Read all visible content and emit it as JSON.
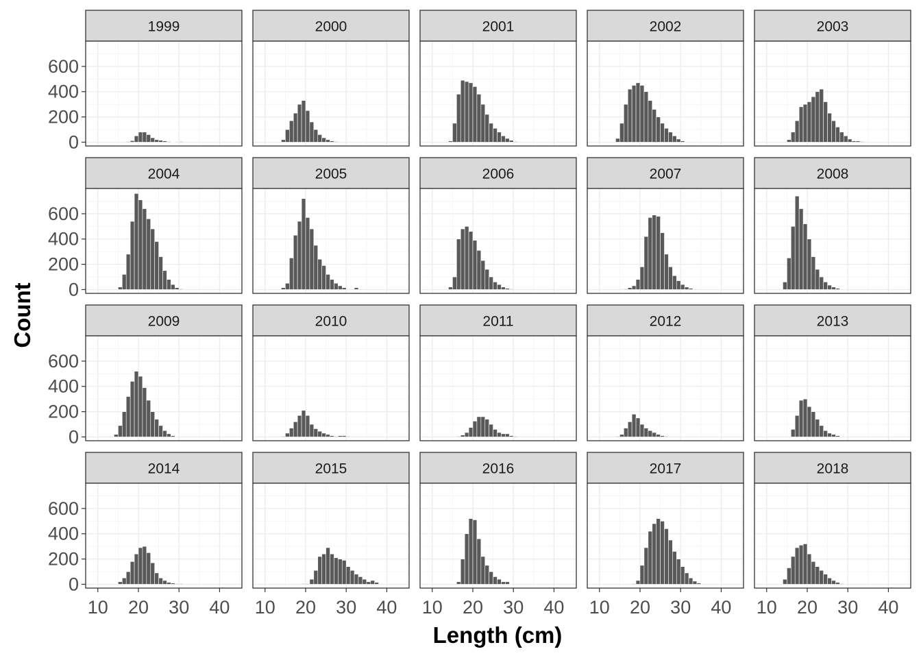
{
  "chart_data": {
    "type": "bar",
    "subtype": "faceted-histogram",
    "xlabel": "Length (cm)",
    "ylabel": "Count",
    "xlim": [
      7,
      45.5
    ],
    "ylim": [
      -30,
      800
    ],
    "xticks": [
      10,
      20,
      30,
      40
    ],
    "yticks": [
      0,
      200,
      400,
      600
    ],
    "grid": true,
    "legend": "none",
    "bar_color": "#595959",
    "facet_layout": {
      "rows": 4,
      "cols": 5
    },
    "bin_start": 14,
    "bin_width": 1,
    "facets": [
      {
        "label": "1999",
        "values": [
          0,
          0,
          0,
          5,
          12,
          50,
          80,
          80,
          60,
          35,
          20,
          15,
          10,
          5,
          2,
          0,
          5
        ]
      },
      {
        "label": "2000",
        "values": [
          20,
          100,
          170,
          230,
          300,
          330,
          250,
          160,
          100,
          60,
          35,
          20,
          10,
          5
        ]
      },
      {
        "label": "2001",
        "values": [
          10,
          150,
          380,
          490,
          480,
          470,
          440,
          380,
          300,
          220,
          150,
          110,
          80,
          50,
          30,
          15,
          5
        ]
      },
      {
        "label": "2002",
        "values": [
          30,
          150,
          300,
          420,
          450,
          470,
          450,
          400,
          330,
          260,
          200,
          150,
          110,
          80,
          50,
          25,
          10
        ]
      },
      {
        "label": "2003",
        "values": [
          0,
          20,
          80,
          170,
          280,
          300,
          320,
          360,
          400,
          420,
          320,
          230,
          170,
          120,
          80,
          50,
          25,
          10,
          10,
          5
        ]
      },
      {
        "label": "2004",
        "values": [
          0,
          20,
          120,
          280,
          540,
          760,
          710,
          640,
          560,
          480,
          380,
          260,
          150,
          80,
          40,
          15,
          5
        ]
      },
      {
        "label": "2005",
        "values": [
          15,
          50,
          250,
          430,
          540,
          720,
          570,
          480,
          350,
          240,
          190,
          120,
          80,
          50,
          30,
          15,
          0,
          0,
          15
        ]
      },
      {
        "label": "2006",
        "values": [
          20,
          100,
          400,
          480,
          500,
          460,
          390,
          310,
          230,
          160,
          100,
          60,
          40,
          20,
          10,
          5
        ]
      },
      {
        "label": "2007",
        "values": [
          0,
          0,
          5,
          15,
          30,
          80,
          180,
          420,
          570,
          590,
          580,
          450,
          280,
          180,
          110,
          70,
          40,
          20,
          10
        ]
      },
      {
        "label": "2008",
        "values": [
          60,
          250,
          500,
          740,
          640,
          520,
          400,
          260,
          160,
          100,
          60,
          35,
          20,
          10
        ]
      },
      {
        "label": "2009",
        "values": [
          20,
          90,
          200,
          320,
          440,
          520,
          480,
          390,
          290,
          200,
          140,
          90,
          50,
          25,
          10
        ]
      },
      {
        "label": "2010",
        "values": [
          5,
          30,
          70,
          120,
          170,
          210,
          170,
          100,
          65,
          45,
          30,
          20,
          10,
          5,
          10,
          10,
          5
        ]
      },
      {
        "label": "2011",
        "values": [
          0,
          0,
          5,
          15,
          35,
          75,
          125,
          160,
          160,
          140,
          100,
          60,
          35,
          25,
          25,
          10,
          5
        ]
      },
      {
        "label": "2012",
        "values": [
          5,
          20,
          70,
          120,
          180,
          150,
          100,
          70,
          50,
          35,
          20,
          10,
          5
        ]
      },
      {
        "label": "2013",
        "values": [
          0,
          0,
          60,
          170,
          290,
          300,
          240,
          200,
          140,
          90,
          50,
          30,
          20,
          10
        ]
      },
      {
        "label": "2014",
        "values": [
          0,
          20,
          50,
          100,
          180,
          240,
          290,
          300,
          250,
          170,
          90,
          50,
          30,
          15,
          10,
          5,
          5
        ]
      },
      {
        "label": "2015",
        "values": [
          0,
          0,
          0,
          0,
          0,
          5,
          5,
          40,
          110,
          220,
          240,
          290,
          240,
          210,
          200,
          190,
          140,
          110,
          80,
          60,
          40,
          20,
          30,
          15
        ]
      },
      {
        "label": "2016",
        "values": [
          0,
          0,
          20,
          200,
          400,
          520,
          510,
          360,
          220,
          150,
          100,
          60,
          40,
          20,
          20
        ]
      },
      {
        "label": "2017",
        "values": [
          0,
          0,
          0,
          0,
          5,
          30,
          150,
          290,
          420,
          480,
          520,
          500,
          440,
          350,
          260,
          200,
          140,
          90,
          50,
          25,
          10
        ]
      },
      {
        "label": "2018",
        "values": [
          40,
          130,
          220,
          290,
          310,
          320,
          240,
          180,
          140,
          110,
          80,
          50,
          30,
          15,
          5
        ]
      }
    ]
  }
}
